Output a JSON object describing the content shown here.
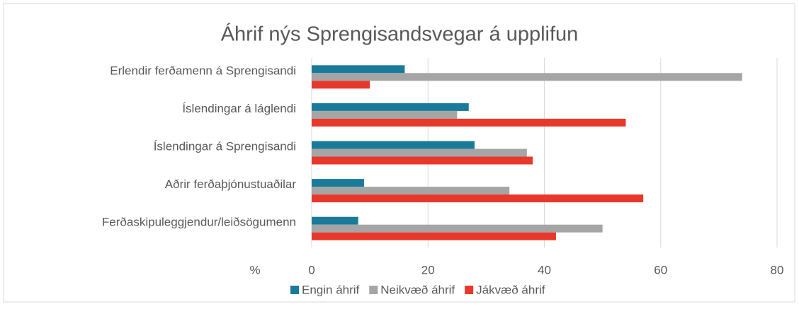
{
  "chart_data": {
    "type": "bar",
    "orientation": "horizontal",
    "title": "Áhrif nýs Sprengisandsvegar á upplifun",
    "xlabel": "%",
    "categories": [
      "Erlendir ferðamenn á Sprengisandi",
      "Íslendingar á láglendi",
      "Íslendingar á Sprengisandi",
      "Aðrir ferðaþjónustuaðilar",
      "Ferðaskipuleggjendur/leiðsögumenn"
    ],
    "series": [
      {
        "name": "Engin áhrif",
        "color": "#1a7a9a",
        "values": [
          16,
          27,
          28,
          9,
          8
        ]
      },
      {
        "name": "Neikvæð áhrif",
        "color": "#a5a5a5",
        "values": [
          74,
          25,
          37,
          34,
          50
        ]
      },
      {
        "name": "Jákvæð áhrif",
        "color": "#e8382b",
        "values": [
          10,
          54,
          38,
          57,
          42
        ]
      }
    ],
    "xlim": [
      0,
      80
    ],
    "xticks": [
      0,
      20,
      40,
      60,
      80
    ],
    "grid": true,
    "legend": "bottom"
  }
}
